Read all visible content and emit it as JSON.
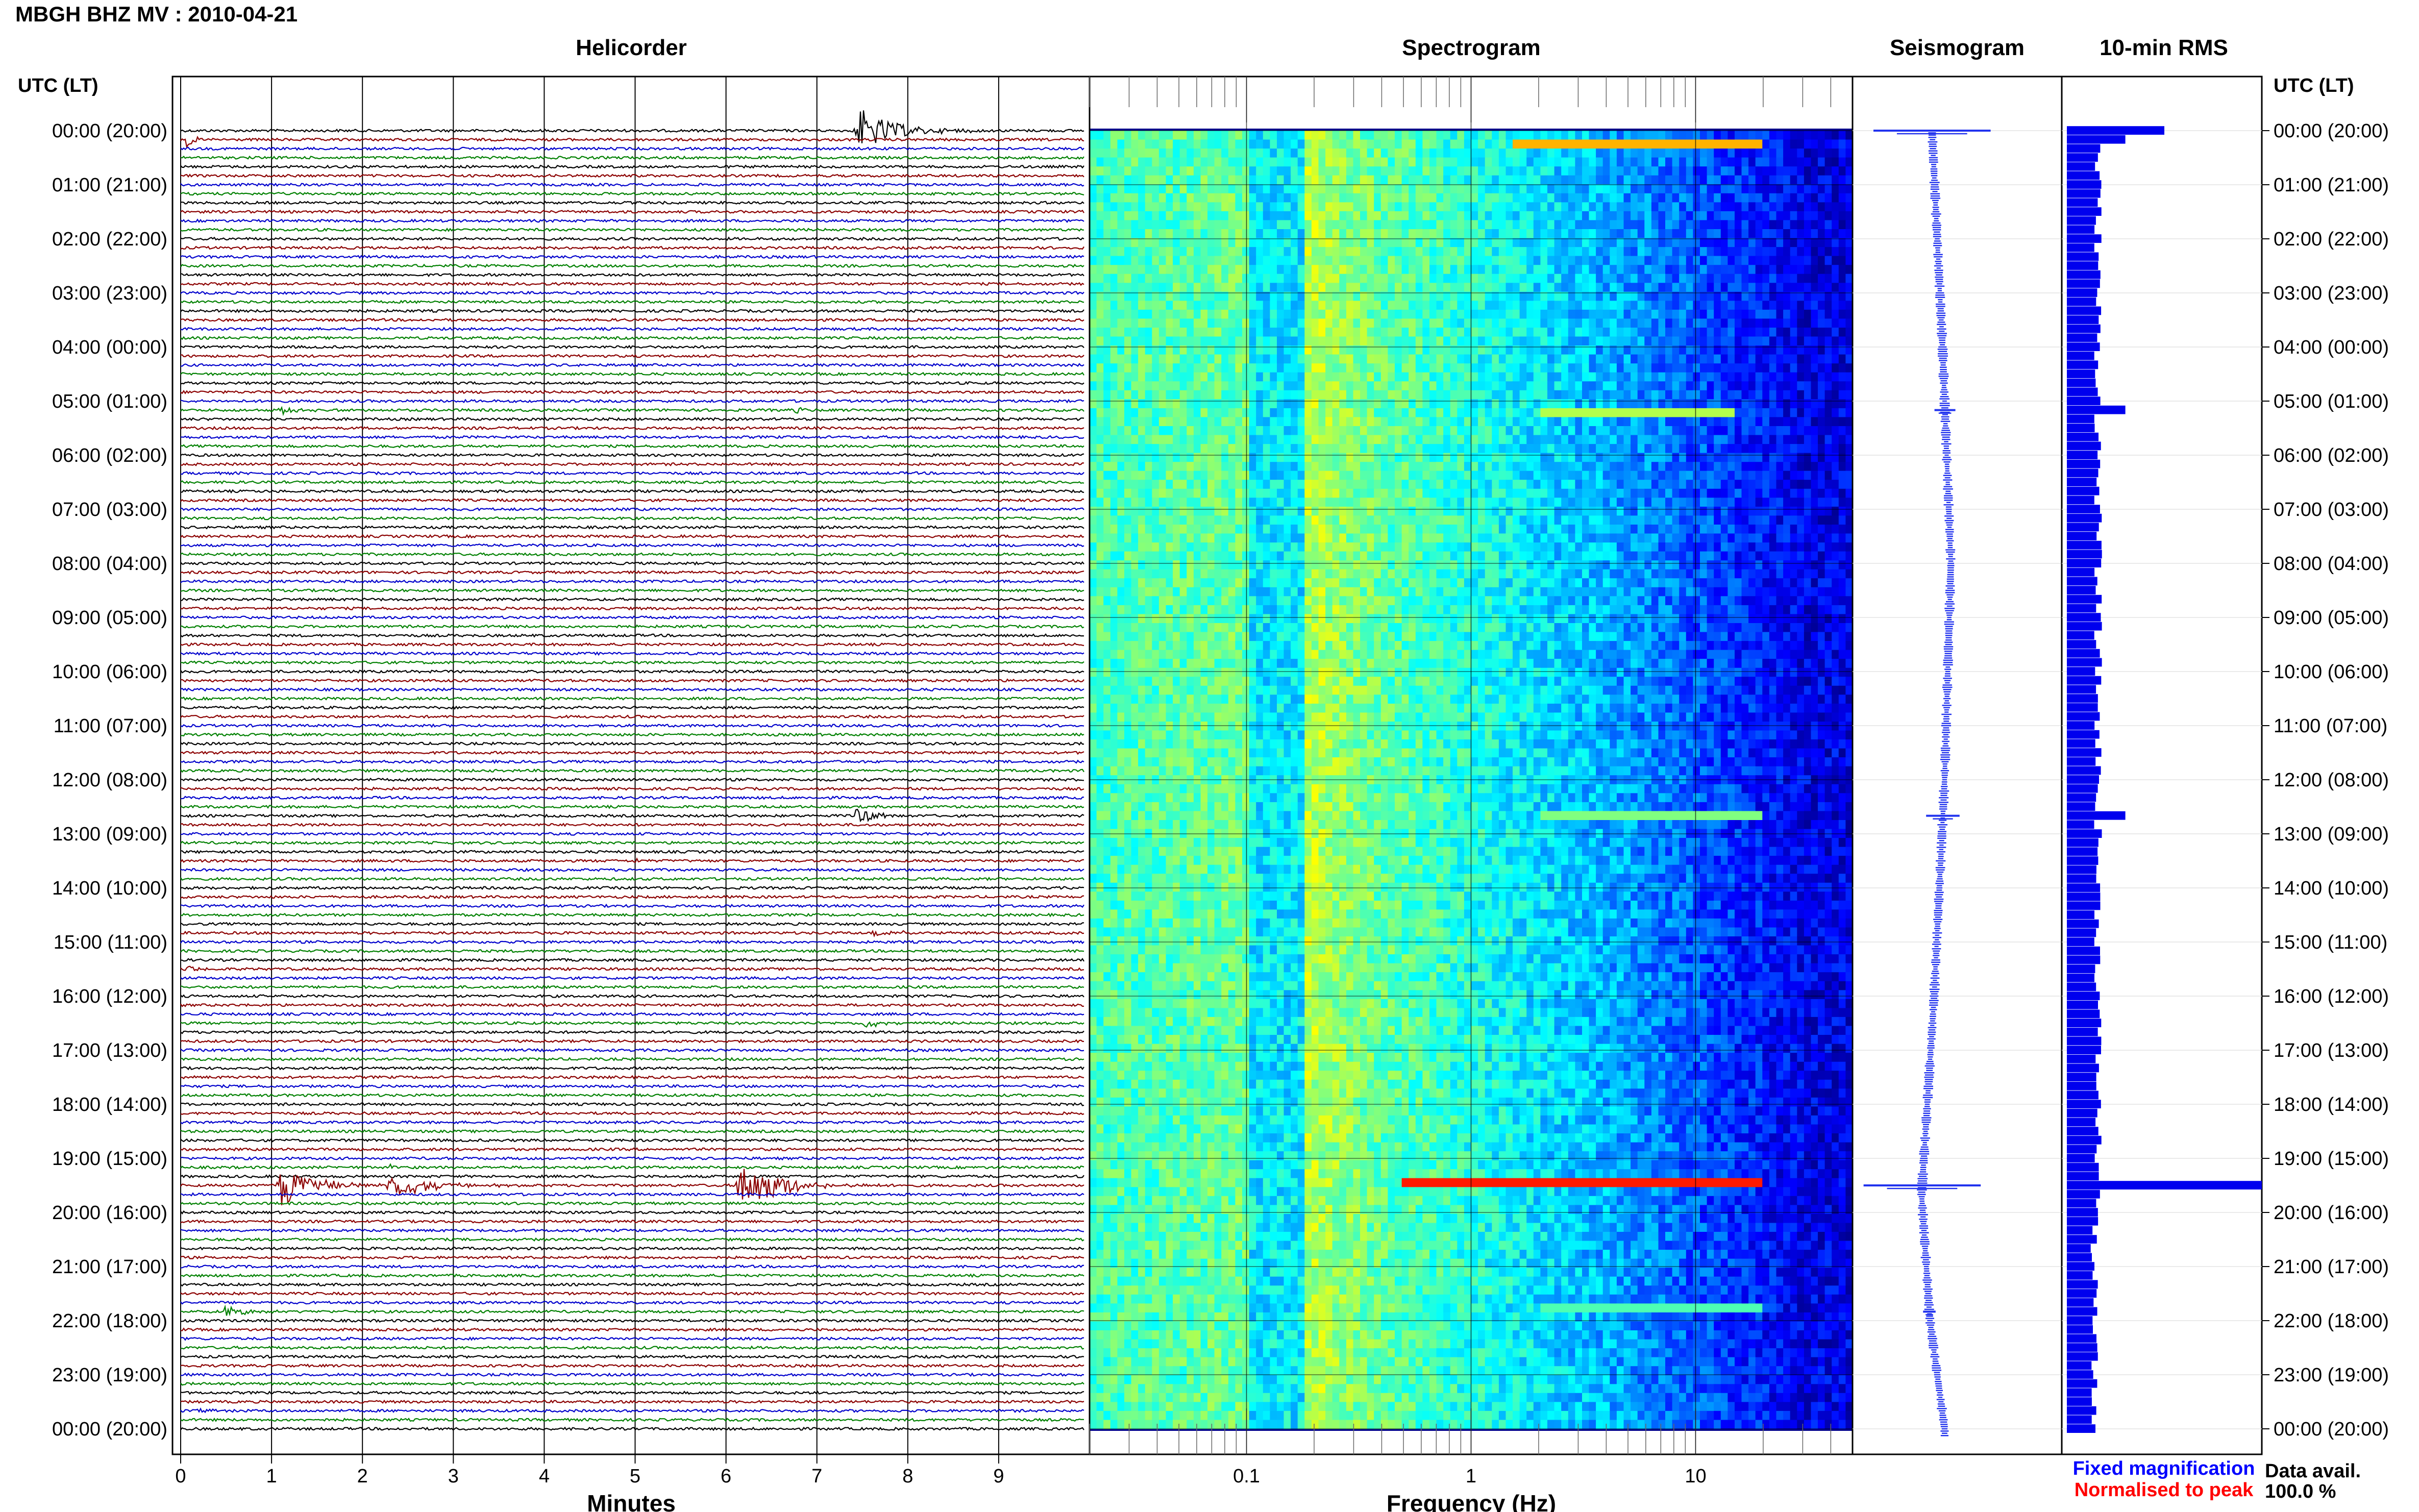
{
  "header": {
    "station_title": "MBGH BHZ MV : 2010-04-21",
    "col_time_left": "UTC (LT)",
    "col_time_right": "UTC (LT)"
  },
  "panels": {
    "helicorder_title": "Helicorder",
    "spectrogram_title": "Spectrogram",
    "seismogram_title": "Seismogram",
    "rms_title": "10-min RMS"
  },
  "footer": {
    "fixed_magnification": "Fixed magnification",
    "normalised_to_peak": "Normalised to peak",
    "data_avail_label": "Data avail.",
    "data_avail_value": "100.0 %"
  },
  "colors": {
    "trace_cycle": [
      "#000000",
      "#8b0000",
      "#0000cc",
      "#008000"
    ],
    "fixed_magnification": "#0000ff",
    "normalised_to_peak": "#ff0000",
    "rms_bar": "#0000ee",
    "seismogram": "#2233ee"
  },
  "chart_data": [
    {
      "type": "line",
      "name": "helicorder",
      "xlabel": "Minutes",
      "x_ticks": [
        "0",
        "1",
        "2",
        "3",
        "4",
        "5",
        "6",
        "7",
        "8",
        "9"
      ],
      "xlim": [
        0,
        10
      ],
      "row_minutes": 10,
      "rows": 145,
      "time_labels": [
        "00:00 (20:00)",
        "01:00 (21:00)",
        "02:00 (22:00)",
        "03:00 (23:00)",
        "04:00 (00:00)",
        "05:00 (01:00)",
        "06:00 (02:00)",
        "07:00 (03:00)",
        "08:00 (04:00)",
        "09:00 (05:00)",
        "10:00 (06:00)",
        "11:00 (07:00)",
        "12:00 (08:00)",
        "13:00 (09:00)",
        "14:00 (10:00)",
        "15:00 (11:00)",
        "16:00 (12:00)",
        "17:00 (13:00)",
        "18:00 (14:00)",
        "19:00 (15:00)",
        "20:00 (16:00)",
        "21:00 (17:00)",
        "22:00 (18:00)",
        "23:00 (19:00)",
        "00:00 (20:00)"
      ],
      "events": [
        {
          "row": 0,
          "minute": 7.4,
          "duration": 1.5,
          "amp": 2.6
        },
        {
          "row": 1,
          "minute": 0.05,
          "duration": 0.25,
          "amp": 1.2
        },
        {
          "row": 31,
          "minute": 1.05,
          "duration": 0.9,
          "amp": 0.6
        },
        {
          "row": 31,
          "minute": 6.75,
          "duration": 0.3,
          "amp": 0.4
        },
        {
          "row": 76,
          "minute": 7.4,
          "duration": 0.8,
          "amp": 1.0
        },
        {
          "row": 81,
          "minute": 5.0,
          "duration": 0.15,
          "amp": 0.5
        },
        {
          "row": 89,
          "minute": 7.6,
          "duration": 0.9,
          "amp": 0.5
        },
        {
          "row": 93,
          "minute": 0.05,
          "duration": 0.3,
          "amp": 0.6
        },
        {
          "row": 99,
          "minute": 7.5,
          "duration": 0.5,
          "amp": 0.7
        },
        {
          "row": 115,
          "minute": 2.3,
          "duration": 0.3,
          "amp": 0.6
        },
        {
          "row": 117,
          "minute": 1.05,
          "duration": 1.2,
          "amp": 2.8
        },
        {
          "row": 117,
          "minute": 2.25,
          "duration": 1.5,
          "amp": 1.6
        },
        {
          "row": 117,
          "minute": 6.1,
          "duration": 1.6,
          "amp": 3.0
        },
        {
          "row": 131,
          "minute": 0.45,
          "duration": 0.9,
          "amp": 0.6
        },
        {
          "row": 142,
          "minute": 0.15,
          "duration": 0.5,
          "amp": 0.5
        }
      ]
    },
    {
      "type": "heatmap",
      "name": "spectrogram",
      "xlabel": "Frequency (Hz)",
      "x_scale": "log",
      "xlim": [
        0.02,
        50
      ],
      "x_ticks": [
        0.1,
        1,
        10
      ],
      "x_tick_labels": [
        "0.1",
        "1",
        "10"
      ],
      "colormap": "jet",
      "bright_lines": [
        {
          "row": 1,
          "f_min": 1.5,
          "f_max": 20,
          "level": 0.7
        },
        {
          "row": 31,
          "f_min": 2,
          "f_max": 15,
          "level": 0.55
        },
        {
          "row": 76,
          "f_min": 2,
          "f_max": 20,
          "level": 0.5
        },
        {
          "row": 117,
          "f_min": 0.5,
          "f_max": 20,
          "level": 0.85
        },
        {
          "row": 131,
          "f_min": 2,
          "f_max": 20,
          "level": 0.45
        }
      ]
    },
    {
      "type": "line",
      "name": "seismogram",
      "x_anchor": [
        [
          0,
          0.38
        ],
        [
          24,
          0.43
        ],
        [
          48,
          0.47
        ],
        [
          72,
          0.44
        ],
        [
          96,
          0.39
        ],
        [
          118,
          0.33
        ],
        [
          132,
          0.37
        ],
        [
          144,
          0.44
        ]
      ],
      "spikes": [
        {
          "row": 0,
          "width": 0.28
        },
        {
          "row": 31,
          "width": 0.05
        },
        {
          "row": 76,
          "width": 0.08
        },
        {
          "row": 117,
          "width": 0.28
        },
        {
          "row": 131,
          "width": 0.03
        }
      ]
    },
    {
      "type": "bar",
      "name": "rms_10min",
      "orientation": "horizontal",
      "baseline": 0.16,
      "spikes": [
        {
          "row": 0,
          "value": 0.5
        },
        {
          "row": 1,
          "value": 0.3
        },
        {
          "row": 31,
          "value": 0.3
        },
        {
          "row": 76,
          "value": 0.3
        },
        {
          "row": 117,
          "value": 1.0
        }
      ]
    }
  ]
}
